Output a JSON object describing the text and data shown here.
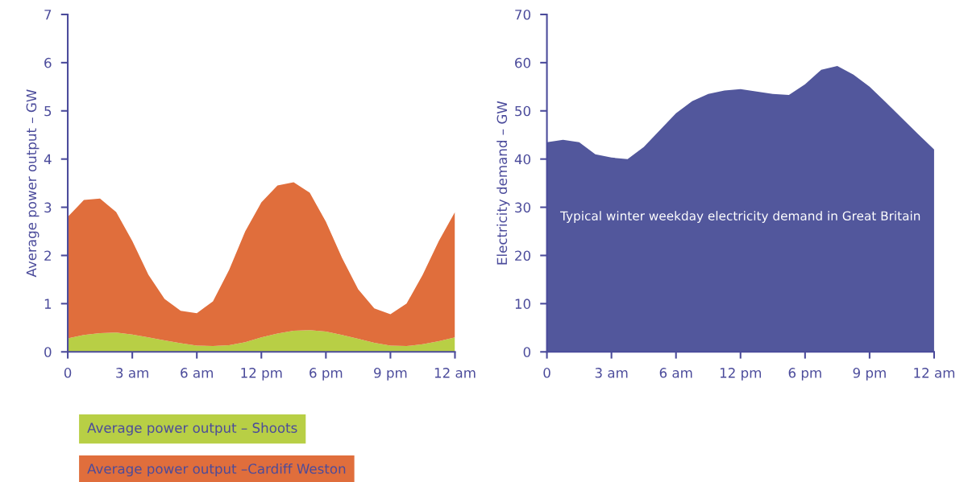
{
  "chart_data": [
    {
      "type": "area",
      "stacked": true,
      "ylabel": "Average power output – GW",
      "legend": "bottom left",
      "categories": [
        "0",
        null,
        null,
        null,
        "3 am",
        null,
        null,
        null,
        "6 am",
        null,
        null,
        null,
        "12 pm",
        null,
        null,
        null,
        "6 pm",
        null,
        null,
        null,
        "9 pm",
        null,
        null,
        null,
        "12 am"
      ],
      "series": [
        {
          "name": "Average power output – Shoots",
          "color": "#b8cf45",
          "values": [
            0.28,
            0.35,
            0.39,
            0.4,
            0.36,
            0.3,
            0.24,
            0.18,
            0.13,
            0.12,
            0.14,
            0.2,
            0.3,
            0.38,
            0.44,
            0.45,
            0.42,
            0.35,
            0.27,
            0.19,
            0.13,
            0.12,
            0.16,
            0.22,
            0.3
          ]
        },
        {
          "name": "Average power output –Cardiff Weston",
          "color": "#e06e3c",
          "values": [
            2.52,
            2.8,
            2.79,
            2.5,
            1.94,
            1.3,
            0.86,
            0.67,
            0.67,
            0.93,
            1.56,
            2.3,
            2.8,
            3.07,
            3.08,
            2.85,
            2.28,
            1.6,
            1.03,
            0.71,
            0.65,
            0.88,
            1.44,
            2.08,
            2.6
          ]
        }
      ],
      "ylim": [
        0,
        7
      ],
      "yticks": [
        0,
        1,
        2,
        3,
        4,
        5,
        6,
        7
      ],
      "grid": false
    },
    {
      "type": "area",
      "ylabel": "Electricity demand – GW",
      "annotations": [
        "Typical winter weekday electricity demand in Great Britain"
      ],
      "categories": [
        "0",
        null,
        null,
        null,
        "3 am",
        null,
        null,
        null,
        "6 am",
        null,
        null,
        null,
        "12 pm",
        null,
        null,
        null,
        "6 pm",
        null,
        null,
        null,
        "9 pm",
        null,
        null,
        null,
        "12 am"
      ],
      "series": [
        {
          "color": "#52579c",
          "values": [
            43.5,
            44,
            43.5,
            41,
            40.3,
            40,
            42.5,
            46,
            49.5,
            52,
            53.5,
            54.2,
            54.5,
            54,
            53.5,
            53.3,
            55.5,
            58.5,
            59.3,
            57.5,
            55,
            51.8,
            48.5,
            45.2,
            42
          ]
        }
      ],
      "ylim": [
        0,
        70
      ],
      "yticks": [
        0,
        10,
        20,
        30,
        40,
        50,
        60,
        70
      ],
      "grid": false
    }
  ]
}
